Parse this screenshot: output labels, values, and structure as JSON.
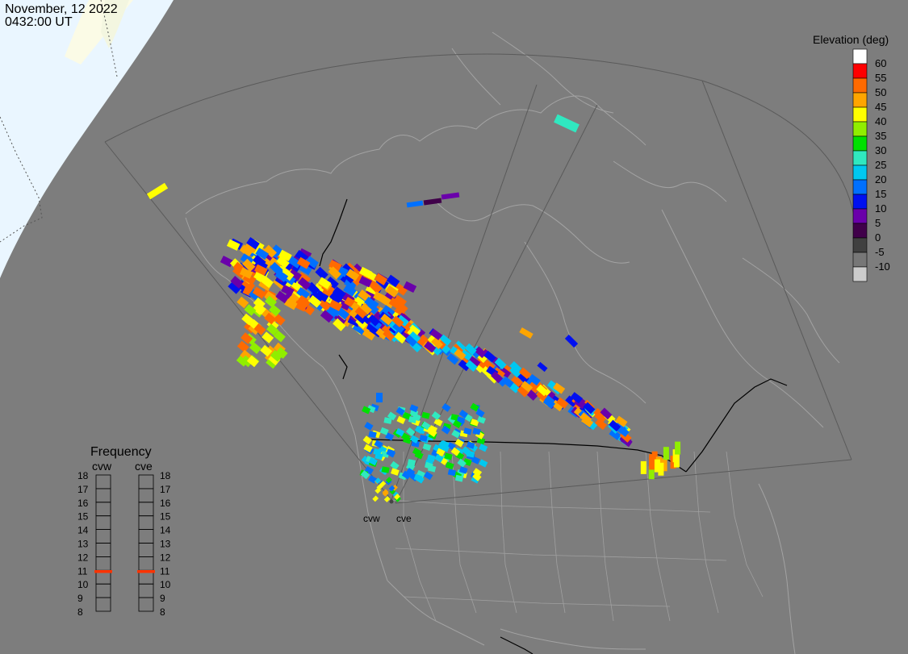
{
  "header": {
    "date": "November, 12 2022",
    "time": "0432:00 UT"
  },
  "colors": {
    "background": "#7d7d7d",
    "daylight": "#fbfbe6",
    "night_ice": "#eaf6ff",
    "boundary_line": "#9a9a9a",
    "fov_line": "#5a5a5a",
    "political": "#000000"
  },
  "legend": {
    "title": "Elevation (deg)",
    "levels": [
      {
        "label": "60",
        "color": "#ffffff"
      },
      {
        "label": "55",
        "color": "#ff0000"
      },
      {
        "label": "50",
        "color": "#ff6a00"
      },
      {
        "label": "45",
        "color": "#ffa500"
      },
      {
        "label": "40",
        "color": "#ffff00"
      },
      {
        "label": "35",
        "color": "#90ee00"
      },
      {
        "label": "30",
        "color": "#00e000"
      },
      {
        "label": "25",
        "color": "#30e8c0"
      },
      {
        "label": "20",
        "color": "#00c8f0"
      },
      {
        "label": "15",
        "color": "#0070ff"
      },
      {
        "label": "10",
        "color": "#0010f0"
      },
      {
        "label": "5",
        "color": "#6a00aa"
      },
      {
        "label": "0",
        "color": "#40004a"
      },
      {
        "label": "-5",
        "color": "#404040"
      },
      {
        "label": "-10",
        "color": "#777777"
      },
      {
        "label": "",
        "color": "#cccccc"
      }
    ]
  },
  "frequency": {
    "title": "Frequency",
    "radars": [
      {
        "name": "cvw",
        "current": 10.9
      },
      {
        "name": "cve",
        "current": 10.9
      }
    ],
    "scale": [
      "18",
      "17",
      "16",
      "15",
      "14",
      "13",
      "12",
      "11",
      "10",
      "9",
      "8"
    ],
    "marker_color": "#ff3300"
  },
  "stations": [
    {
      "name": "cvw"
    },
    {
      "name": "cve"
    }
  ],
  "echo_groups": [
    {
      "region": "western-canada-band",
      "level_mix": [
        "10",
        "5",
        "45",
        "40",
        "15",
        "50"
      ]
    },
    {
      "region": "central-canada-band",
      "level_mix": [
        "15",
        "10",
        "45",
        "40",
        "5",
        "50",
        "20"
      ]
    },
    {
      "region": "pacific-northwest-cluster",
      "level_mix": [
        "20",
        "25",
        "15",
        "40",
        "30"
      ]
    },
    {
      "region": "great-lakes-patch",
      "level_mix": [
        "40",
        "45",
        "50",
        "35"
      ]
    }
  ]
}
